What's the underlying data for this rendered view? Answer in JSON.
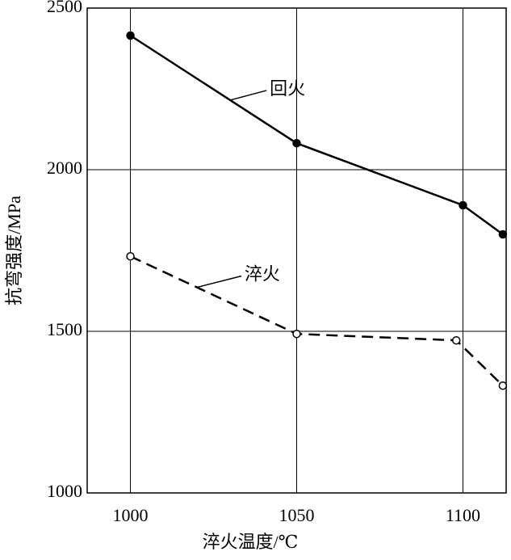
{
  "chart_data": {
    "type": "line",
    "x_label": "淬火温度/℃",
    "y_label": "抗弯强度/MPa",
    "xlim": [
      987,
      1113
    ],
    "ylim": [
      1000,
      2500
    ],
    "xticks": [
      1000,
      1050,
      1100
    ],
    "yticks": [
      1000,
      1500,
      2000,
      2500
    ],
    "grid": true,
    "series": [
      {
        "name": "回火",
        "color": "#000000",
        "dash": false,
        "marker": "filled",
        "x": [
          1000,
          1050,
          1100,
          1112
        ],
        "values": [
          2415,
          2082,
          1890,
          1800
        ]
      },
      {
        "name": "淬火",
        "color": "#000000",
        "dash": true,
        "marker": "open",
        "x": [
          1000,
          1050,
          1098,
          1112
        ],
        "values": [
          1732,
          1492,
          1472,
          1332
        ]
      }
    ]
  }
}
